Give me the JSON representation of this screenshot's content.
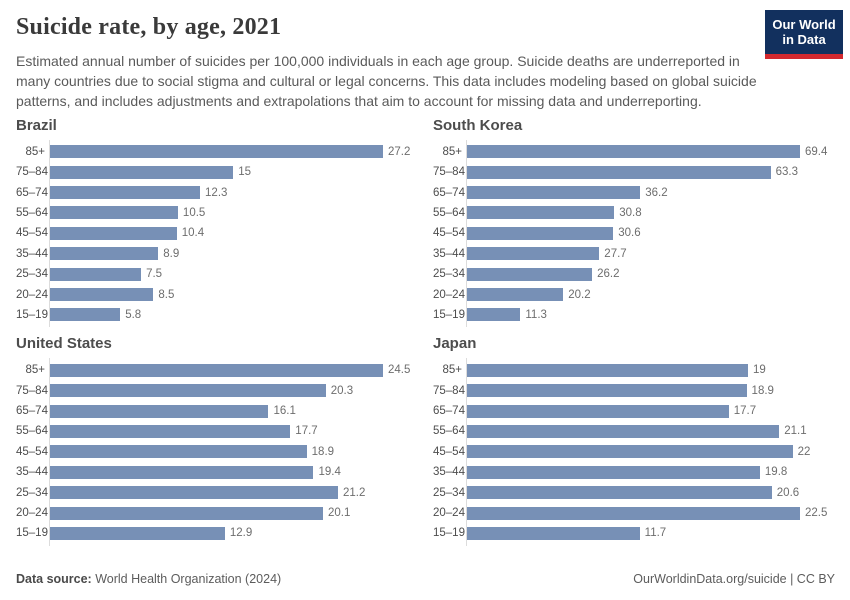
{
  "header": {
    "title": "Suicide rate, by age, 2021",
    "subtitle": "Estimated annual number of suicides per 100,000 individuals in each age group. Suicide deaths are underreported in many countries due to social stigma and cultural or legal concerns. This data includes modeling based on global suicide patterns, and includes adjustments and extrapolations that aim to account for missing data and underreporting.",
    "logo": {
      "line1": "Our World",
      "line2": "in Data",
      "background_color": "#12305e",
      "stripe_color": "#d3282e"
    }
  },
  "chart_data": {
    "type": "bar",
    "orientation": "horizontal",
    "title": "Suicide rate, by age, 2021",
    "unit": "suicides per 100,000 individuals",
    "value_labels": true,
    "grid": false,
    "legend": "none",
    "scale": "independent per facet, bars normalized to facet maximum",
    "bar_color": "#7790b6",
    "categories": [
      "85+",
      "75–84",
      "65–74",
      "55–64",
      "45–54",
      "35–44",
      "25–34",
      "20–24",
      "15–19"
    ],
    "facets": [
      {
        "name": "Brazil",
        "values": [
          27.2,
          15,
          12.3,
          10.5,
          10.4,
          8.9,
          7.5,
          8.5,
          5.8
        ]
      },
      {
        "name": "South Korea",
        "values": [
          69.4,
          63.3,
          36.2,
          30.8,
          30.6,
          27.7,
          26.2,
          20.2,
          11.3
        ]
      },
      {
        "name": "United States",
        "values": [
          24.5,
          20.3,
          16.1,
          17.7,
          18.9,
          19.4,
          21.2,
          20.1,
          12.9
        ]
      },
      {
        "name": "Japan",
        "values": [
          19,
          18.9,
          17.7,
          21.1,
          22,
          19.8,
          20.6,
          22.5,
          11.7
        ]
      }
    ]
  },
  "footer": {
    "source_label": "Data source:",
    "source_value": " World Health Organization (2024)",
    "credit": "OurWorldinData.org/suicide | CC BY"
  }
}
